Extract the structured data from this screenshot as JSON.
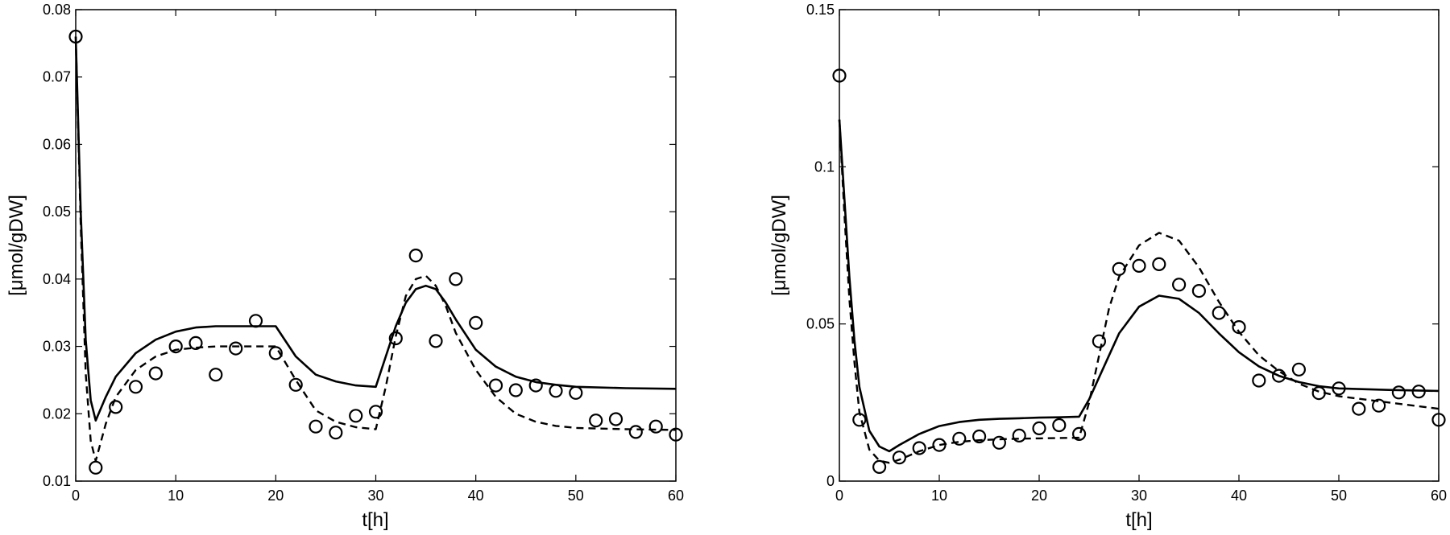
{
  "chart_data": [
    {
      "type": "line",
      "xlabel": "t[h]",
      "ylabel": "[μmol/gDW]",
      "xlim": [
        0,
        60
      ],
      "ylim": [
        0.01,
        0.08
      ],
      "xticks": [
        0,
        10,
        20,
        30,
        40,
        50,
        60
      ],
      "yticks": [
        0.01,
        0.02,
        0.03,
        0.04,
        0.05,
        0.06,
        0.07,
        0.08
      ],
      "xtick_labels": [
        "0",
        "10",
        "20",
        "30",
        "40",
        "50",
        "60"
      ],
      "ytick_labels": [
        "0.01",
        "0.02",
        "0.03",
        "0.04",
        "0.05",
        "0.06",
        "0.07",
        "0.08"
      ],
      "grid": false,
      "series": [
        {
          "style": "solid",
          "x": [
            0,
            0.5,
            1,
            1.5,
            2,
            3,
            4,
            6,
            8,
            10,
            12,
            14,
            16,
            18,
            20,
            22,
            24,
            26,
            28,
            30,
            31,
            32,
            33,
            34,
            35,
            36,
            37,
            38,
            40,
            42,
            44,
            46,
            48,
            50,
            55,
            60
          ],
          "y": [
            0.076,
            0.05,
            0.031,
            0.022,
            0.019,
            0.0225,
            0.0255,
            0.029,
            0.031,
            0.0322,
            0.0328,
            0.033,
            0.033,
            0.033,
            0.033,
            0.0285,
            0.0258,
            0.0248,
            0.0242,
            0.024,
            0.0285,
            0.033,
            0.0365,
            0.0385,
            0.039,
            0.0385,
            0.0365,
            0.034,
            0.0295,
            0.027,
            0.0255,
            0.0247,
            0.0243,
            0.024,
            0.0238,
            0.0237
          ]
        },
        {
          "style": "dashed",
          "x": [
            0,
            0.5,
            1,
            1.5,
            2,
            3,
            4,
            6,
            8,
            10,
            12,
            14,
            16,
            18,
            20,
            22,
            24,
            26,
            28,
            30,
            31,
            32,
            33,
            34,
            35,
            36,
            37,
            38,
            40,
            42,
            44,
            46,
            48,
            50,
            55,
            60
          ],
          "y": [
            0.076,
            0.048,
            0.026,
            0.016,
            0.013,
            0.0185,
            0.0225,
            0.0265,
            0.0285,
            0.0295,
            0.0298,
            0.03,
            0.03,
            0.03,
            0.03,
            0.025,
            0.0205,
            0.0188,
            0.018,
            0.0177,
            0.024,
            0.0315,
            0.0375,
            0.04,
            0.0405,
            0.039,
            0.036,
            0.032,
            0.0265,
            0.0225,
            0.02,
            0.0188,
            0.0182,
            0.0179,
            0.0177,
            0.0176
          ]
        },
        {
          "style": "markers",
          "x": [
            0,
            2,
            4,
            6,
            8,
            10,
            12,
            14,
            16,
            18,
            20,
            22,
            24,
            26,
            28,
            30,
            32,
            34,
            36,
            38,
            40,
            42,
            44,
            46,
            48,
            50,
            52,
            54,
            56,
            58,
            60
          ],
          "y": [
            0.076,
            0.012,
            0.021,
            0.024,
            0.026,
            0.03,
            0.0305,
            0.0258,
            0.0297,
            0.0338,
            0.029,
            0.0243,
            0.0181,
            0.0172,
            0.0197,
            0.0203,
            0.0312,
            0.0435,
            0.0308,
            0.04,
            0.0335,
            0.0242,
            0.0235,
            0.0242,
            0.0234,
            0.0231,
            0.019,
            0.0192,
            0.0173,
            0.0181,
            0.0169
          ]
        }
      ]
    },
    {
      "type": "line",
      "xlabel": "t[h]",
      "ylabel": "[μmol/gDW]",
      "xlim": [
        0,
        60
      ],
      "ylim": [
        0,
        0.15
      ],
      "xticks": [
        0,
        10,
        20,
        30,
        40,
        50,
        60
      ],
      "yticks": [
        0,
        0.05,
        0.1,
        0.15
      ],
      "xtick_labels": [
        "0",
        "10",
        "20",
        "30",
        "40",
        "50",
        "60"
      ],
      "ytick_labels": [
        "0",
        "0.05",
        "0.1",
        "0.15"
      ],
      "grid": false,
      "series": [
        {
          "style": "solid",
          "x": [
            0,
            0.5,
            1,
            1.5,
            2,
            3,
            4,
            5,
            6,
            8,
            10,
            12,
            14,
            16,
            18,
            20,
            22,
            24,
            25,
            26,
            27,
            28,
            30,
            32,
            34,
            36,
            38,
            40,
            42,
            44,
            46,
            48,
            50,
            55,
            60
          ],
          "y": [
            0.115,
            0.09,
            0.065,
            0.045,
            0.03,
            0.016,
            0.011,
            0.0095,
            0.0115,
            0.015,
            0.0175,
            0.0188,
            0.0195,
            0.0198,
            0.02,
            0.0202,
            0.0203,
            0.0205,
            0.026,
            0.033,
            0.04,
            0.047,
            0.0555,
            0.059,
            0.058,
            0.0535,
            0.047,
            0.041,
            0.0365,
            0.0335,
            0.0315,
            0.0302,
            0.0295,
            0.029,
            0.0287
          ]
        },
        {
          "style": "dashed",
          "x": [
            0,
            0.5,
            1,
            1.5,
            2,
            3,
            4,
            5,
            6,
            8,
            10,
            12,
            14,
            16,
            18,
            20,
            22,
            24,
            25,
            26,
            27,
            28,
            30,
            32,
            34,
            36,
            38,
            40,
            42,
            44,
            46,
            48,
            50,
            55,
            60
          ],
          "y": [
            0.115,
            0.085,
            0.058,
            0.038,
            0.022,
            0.01,
            0.0065,
            0.0058,
            0.0068,
            0.0095,
            0.0115,
            0.0125,
            0.013,
            0.0133,
            0.0135,
            0.0136,
            0.0137,
            0.0138,
            0.025,
            0.04,
            0.055,
            0.065,
            0.075,
            0.079,
            0.0765,
            0.068,
            0.057,
            0.0475,
            0.04,
            0.035,
            0.031,
            0.0285,
            0.027,
            0.025,
            0.023
          ]
        },
        {
          "style": "markers",
          "x": [
            0,
            2,
            4,
            6,
            8,
            10,
            12,
            14,
            16,
            18,
            20,
            22,
            24,
            26,
            28,
            30,
            32,
            34,
            36,
            38,
            40,
            42,
            44,
            46,
            48,
            50,
            52,
            54,
            56,
            58,
            60
          ],
          "y": [
            0.129,
            0.0195,
            0.0045,
            0.0075,
            0.0105,
            0.0115,
            0.0135,
            0.0142,
            0.0122,
            0.0145,
            0.0168,
            0.0178,
            0.015,
            0.0445,
            0.0675,
            0.0685,
            0.069,
            0.0625,
            0.0605,
            0.0535,
            0.049,
            0.032,
            0.0335,
            0.0355,
            0.028,
            0.0295,
            0.023,
            0.024,
            0.0282,
            0.0285,
            0.0195
          ]
        }
      ]
    }
  ]
}
